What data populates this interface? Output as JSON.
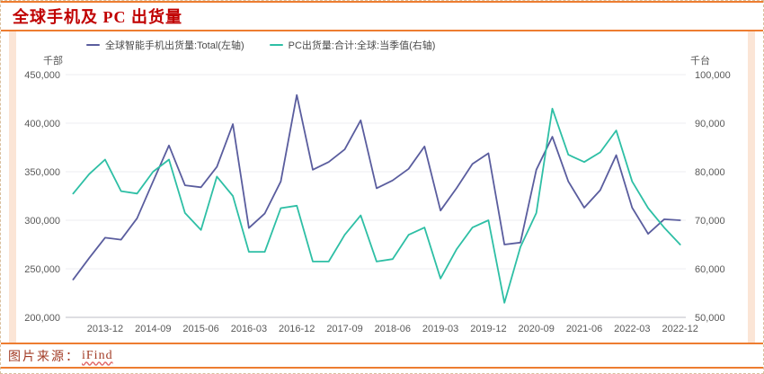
{
  "page": {
    "title": "全球手机及 PC 出货量",
    "footer": {
      "source_label": "图片来源：",
      "source_value": "iFind"
    }
  },
  "colors": {
    "title_red": "#c00000",
    "accent_orange": "#ed7d31",
    "side_band_peach": "#fbe5d6",
    "smartphone_line": "#5a5d9e",
    "pc_line": "#2ebfa5",
    "grid_gray": "#ededf2",
    "axis_text_gray": "#595959",
    "footer_red": "#a23b25"
  },
  "chart_data": {
    "type": "line",
    "title": "全球手机及 PC 出货量",
    "grid": true,
    "legend_position": "top-left",
    "x": [
      "2013-06",
      "2013-09",
      "2013-12",
      "2014-03",
      "2014-06",
      "2014-09",
      "2014-12",
      "2015-03",
      "2015-06",
      "2015-09",
      "2015-12",
      "2016-03",
      "2016-06",
      "2016-09",
      "2016-12",
      "2017-03",
      "2017-06",
      "2017-09",
      "2017-12",
      "2018-03",
      "2018-06",
      "2018-09",
      "2018-12",
      "2019-03",
      "2019-06",
      "2019-09",
      "2019-12",
      "2020-03",
      "2020-06",
      "2020-09",
      "2020-12",
      "2021-03",
      "2021-06",
      "2021-09",
      "2021-12",
      "2022-03",
      "2022-06",
      "2022-09",
      "2022-12"
    ],
    "x_tick_labels": [
      "2013-12",
      "2014-09",
      "2015-06",
      "2016-03",
      "2016-12",
      "2017-09",
      "2018-06",
      "2019-03",
      "2019-12",
      "2020-09",
      "2021-06",
      "2022-03",
      "2022-12"
    ],
    "left_axis": {
      "unit": "千部",
      "min": 200000,
      "max": 450000,
      "tick_step": 50000,
      "tick_labels": [
        "450,000",
        "400,000",
        "350,000",
        "300,000",
        "250,000",
        "200,000"
      ]
    },
    "right_axis": {
      "unit": "千台",
      "min": 50000,
      "max": 100000,
      "tick_step": 10000,
      "tick_labels": [
        "100,000",
        "90,000",
        "80,000",
        "70,000",
        "60,000",
        "50,000"
      ]
    },
    "series": [
      {
        "name": "全球智能手机出货量:Total(左轴)",
        "axis": "left",
        "color": "#5a5d9e",
        "values": [
          239000,
          261000,
          282000,
          280000,
          302000,
          340000,
          377000,
          336000,
          334000,
          355000,
          399000,
          292000,
          307000,
          340000,
          429000,
          352000,
          360000,
          373000,
          403000,
          333000,
          341000,
          353000,
          376000,
          310000,
          333000,
          358000,
          369000,
          275000,
          277000,
          352000,
          386000,
          340000,
          313000,
          331000,
          367000,
          313000,
          286000,
          301000,
          300000
        ]
      },
      {
        "name": "PC出货量:合计:全球:当季值(右轴)",
        "axis": "right",
        "color": "#2ebfa5",
        "values": [
          75500,
          79500,
          82500,
          76000,
          75500,
          80000,
          82500,
          71500,
          68000,
          79000,
          75000,
          63500,
          63500,
          72500,
          73000,
          61500,
          61500,
          67000,
          71000,
          61500,
          62000,
          67000,
          68500,
          58000,
          64000,
          68500,
          70000,
          53000,
          64500,
          71500,
          93000,
          83500,
          82000,
          84000,
          88500,
          78000,
          72500,
          68500,
          65000
        ]
      }
    ]
  }
}
